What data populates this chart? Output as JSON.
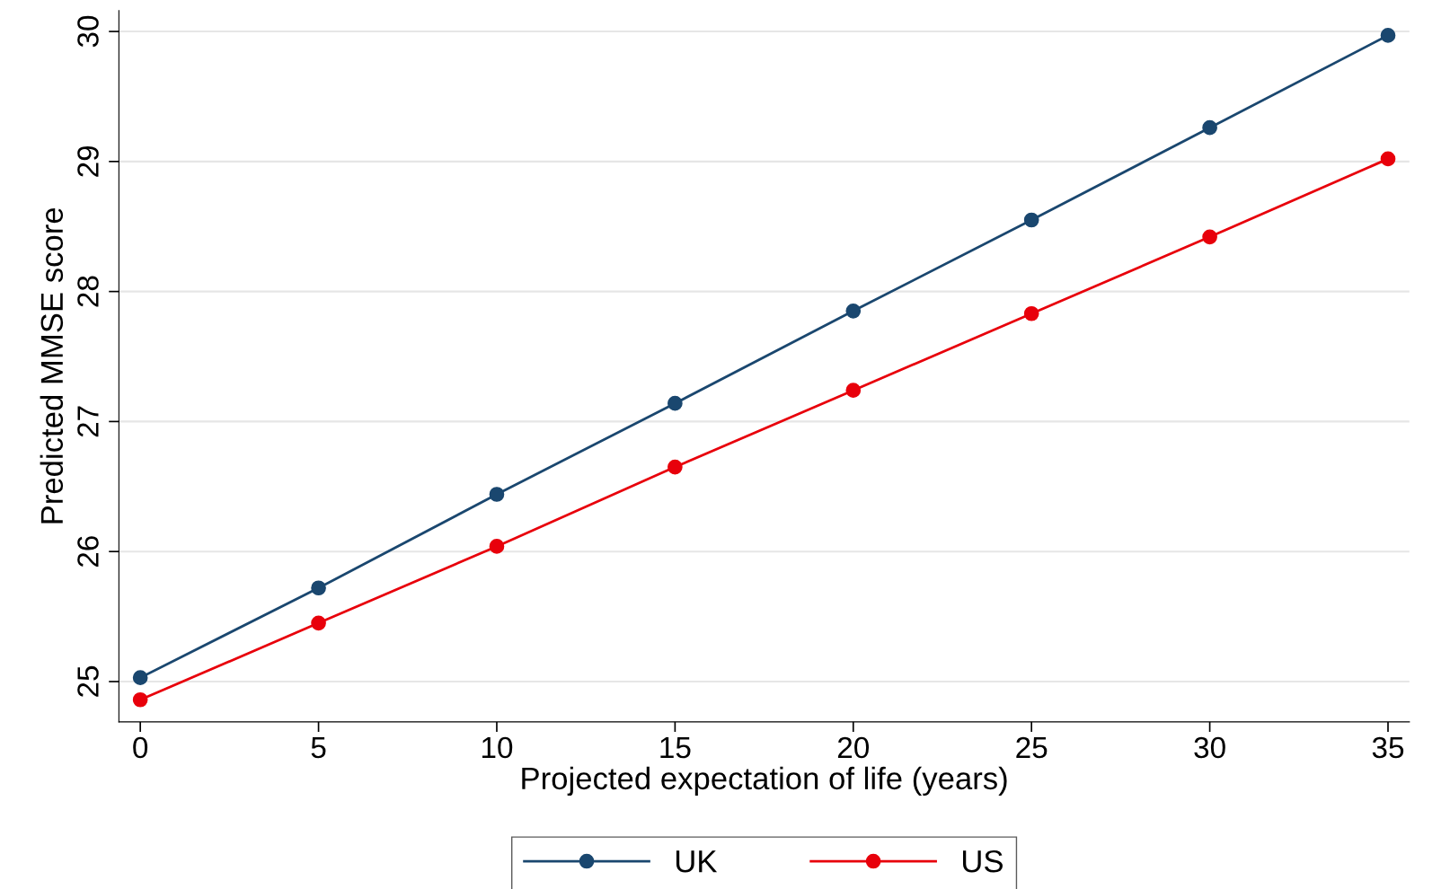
{
  "chart_data": {
    "type": "line",
    "xlabel": "Projected expectation of life (years)",
    "ylabel": "Predicted MMSE score",
    "x": [
      0,
      5,
      10,
      15,
      20,
      25,
      30,
      35
    ],
    "series": [
      {
        "name": "UK",
        "color": "#1a476f",
        "values": [
          25.03,
          25.72,
          26.44,
          27.14,
          27.85,
          28.55,
          29.26,
          29.97
        ]
      },
      {
        "name": "US",
        "color": "#e8000b",
        "values": [
          24.86,
          25.45,
          26.04,
          26.65,
          27.24,
          27.83,
          28.42,
          29.02
        ]
      }
    ],
    "xlim": [
      -0.6,
      35.6
    ],
    "ylim": [
      24.69,
      30.16
    ],
    "xticks": [
      0,
      5,
      10,
      15,
      20,
      25,
      30,
      35
    ],
    "yticks": [
      25,
      26,
      27,
      28,
      29,
      30
    ],
    "grid": "y",
    "legend": "bottom",
    "marker": "circle",
    "line_style": "solid"
  }
}
